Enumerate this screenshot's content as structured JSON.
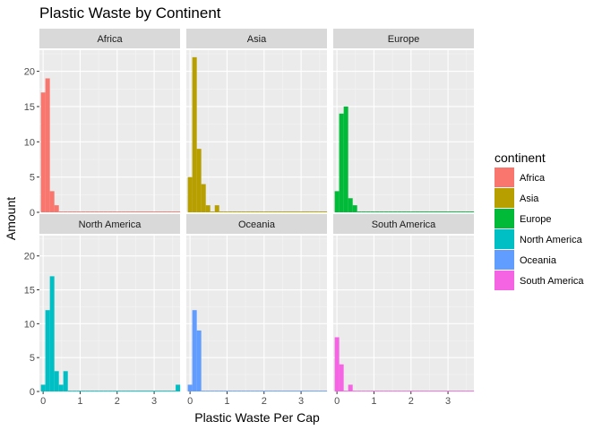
{
  "chart_data": {
    "type": "bar",
    "subtype": "faceted-histogram",
    "title": "Plastic Waste by Continent",
    "xlabel": "Plastic Waste Per Cap",
    "ylabel": "Amount",
    "xlim": [
      -0.1,
      3.7
    ],
    "ylim": [
      0,
      23
    ],
    "x_ticks": [
      0,
      1,
      2,
      3
    ],
    "y_ticks": [
      0,
      5,
      10,
      15,
      20
    ],
    "bin_width": 0.1214,
    "grid": true,
    "legend": {
      "title": "continent",
      "position": "right"
    },
    "series": [
      {
        "name": "Africa",
        "color": "#F8766D",
        "bins": [
          [
            0,
            17
          ],
          [
            1,
            19
          ],
          [
            2,
            3
          ],
          [
            3,
            1
          ]
        ]
      },
      {
        "name": "Asia",
        "color": "#B79F00",
        "bins": [
          [
            0,
            5
          ],
          [
            1,
            22
          ],
          [
            2,
            9
          ],
          [
            3,
            4
          ],
          [
            4,
            1
          ],
          [
            6,
            1
          ]
        ]
      },
      {
        "name": "Europe",
        "color": "#00BA38",
        "bins": [
          [
            0,
            3
          ],
          [
            1,
            14
          ],
          [
            2,
            15
          ],
          [
            3,
            2
          ],
          [
            4,
            1
          ]
        ]
      },
      {
        "name": "North America",
        "color": "#00BFC4",
        "bins": [
          [
            0,
            1
          ],
          [
            1,
            12
          ],
          [
            2,
            17
          ],
          [
            3,
            3
          ],
          [
            4,
            1
          ],
          [
            5,
            3
          ],
          [
            30,
            1
          ]
        ]
      },
      {
        "name": "Oceania",
        "color": "#619CFF",
        "bins": [
          [
            0,
            1
          ],
          [
            1,
            12
          ],
          [
            2,
            9
          ]
        ]
      },
      {
        "name": "South America",
        "color": "#F564E3",
        "bins": [
          [
            0,
            8
          ],
          [
            1,
            4
          ],
          [
            3,
            1
          ]
        ]
      }
    ]
  }
}
